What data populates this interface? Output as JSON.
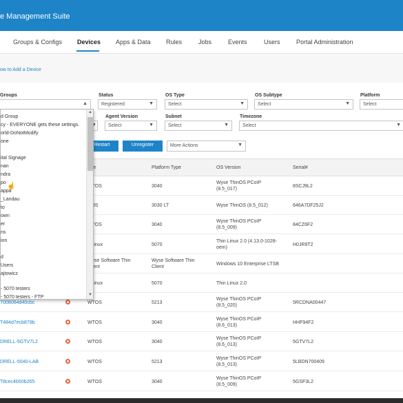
{
  "header": {
    "title": "e Management Suite"
  },
  "nav": {
    "tabs": [
      "Groups & Configs",
      "Devices",
      "Apps & Data",
      "Rules",
      "Jobs",
      "Events",
      "Users",
      "Portal Administration"
    ]
  },
  "subbar": {
    "howto": "ow to Add a Device"
  },
  "filters": {
    "groups_label": "Groups",
    "status_label": "Status",
    "status_value": "Registered",
    "os_type_label": "OS Type",
    "os_type_value": "Select",
    "os_subtype_label": "OS Subtype",
    "os_subtype_value": "Select",
    "platform_label": "Platform",
    "platform_value": "Select",
    "agent_version_label": "Agent Version",
    "agent_version_value": "Select",
    "subnet_label": "Subnet",
    "subnet_value": "Select",
    "timezone_label": "Timezone",
    "timezone_value": "Select"
  },
  "actions": {
    "restart": "Restart",
    "unregister": "Unregister",
    "more": "More Actions"
  },
  "table": {
    "headers": [
      "ype",
      "Platform Type",
      "OS Version",
      "Serial#"
    ],
    "rows": [
      {
        "name": "",
        "type": "WTOS",
        "platform": "3040",
        "os": [
          "Wyse ThinOS PCoIP",
          "(8.5_017)"
        ],
        "serial": "8SCJ9L2"
      },
      {
        "name": "",
        "type": "inOS",
        "platform": "3030 LT",
        "os": [
          "Wyse ThinOS (8.5_012)"
        ],
        "serial": "646A7DF25J2"
      },
      {
        "name": "",
        "type": "WTOS",
        "platform": "3040",
        "os": [
          "Wyse ThinOS PCoIP",
          "(8.5_009)"
        ],
        "serial": "84CZ6F2"
      },
      {
        "name": "",
        "type": "inLinux",
        "platform": "5070",
        "os": [
          "Thin Linux 2.0 (4.13.0-1028-",
          "oem)"
        ],
        "serial": "H0JR9T2"
      },
      {
        "name": "",
        "type": "Wyse Software Thin Client",
        "platform": "Wyse Software Thin Client",
        "os": [
          "Windows 10 Enterprise LTSB"
        ],
        "serial": ""
      },
      {
        "name": "",
        "type": "inLinux",
        "platform": "5070",
        "os": [
          "Thin Linux 2.0"
        ],
        "serial": ""
      },
      {
        "name": "T008064d40cbc",
        "type": "WTOS",
        "platform": "5213",
        "os": [
          "Wyse ThinOS PCoIP",
          "(8.5_020)"
        ],
        "serial": "5RCDNA00447"
      },
      {
        "name": "T484d7ecb878b",
        "type": "WTOS",
        "platform": "3040",
        "os": [
          "Wyse ThinOS PCoIP",
          "(8.6_013)"
        ],
        "serial": "HHF94F2"
      },
      {
        "name": "DRELL-5GTV7L2",
        "type": "WTOS",
        "platform": "3040",
        "os": [
          "Wyse ThinOS PCoIP",
          "(8.6_013)"
        ],
        "serial": "5GTV7L2"
      },
      {
        "name": "DRELL-5040-LAB",
        "type": "WTOS",
        "platform": "5213",
        "os": [
          "Wyse ThinOS PCoIP",
          "(8.5_013)"
        ],
        "serial": "5LBDN700409"
      },
      {
        "name": "T8cec4b50b265",
        "type": "WTOS",
        "platform": "3040",
        "os": [
          "Wyse ThinOS PCoIP",
          "(8.5_009)"
        ],
        "serial": "5GSF3L2"
      }
    ]
  },
  "dropdown": {
    "items": [
      "d Group",
      "cy - EVERYONE gets these settings.",
      "orld-DoNotModify",
      "one",
      "",
      "ital Signage",
      "nan",
      "ndra",
      "po",
      "appa",
      "_Landau",
      "to",
      "own",
      "er",
      "ns",
      "ion",
      "",
      "d",
      "Users",
      "ajtowicz",
      "",
      "- 5070 testers",
      "- 5070 testers - FTP"
    ]
  }
}
